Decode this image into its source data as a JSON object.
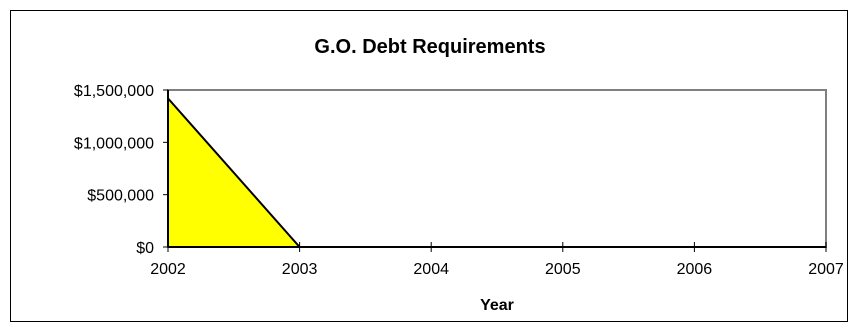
{
  "chart_data": {
    "type": "area",
    "title": "G.O. Debt Requirements",
    "xlabel": "Year",
    "ylabel": "",
    "x": [
      2002,
      2003,
      2004,
      2005,
      2006,
      2007
    ],
    "x_tick_labels": [
      "2002",
      "2003",
      "2004",
      "2005",
      "2006",
      "2007"
    ],
    "y_tick_labels": [
      "$0",
      "$500,000",
      "$1,000,000",
      "$1,500,000"
    ],
    "y_ticks": [
      0,
      500000,
      1000000,
      1500000
    ],
    "series": [
      {
        "values": [
          1420000,
          0,
          0,
          0,
          0,
          0
        ]
      }
    ],
    "xlim": [
      2002,
      2007
    ],
    "ylim": [
      0,
      1500000
    ],
    "grid": false,
    "legend": "none",
    "colors": {
      "fill": "#ffff00",
      "line": "#000000",
      "plot_border": "#808080"
    }
  }
}
